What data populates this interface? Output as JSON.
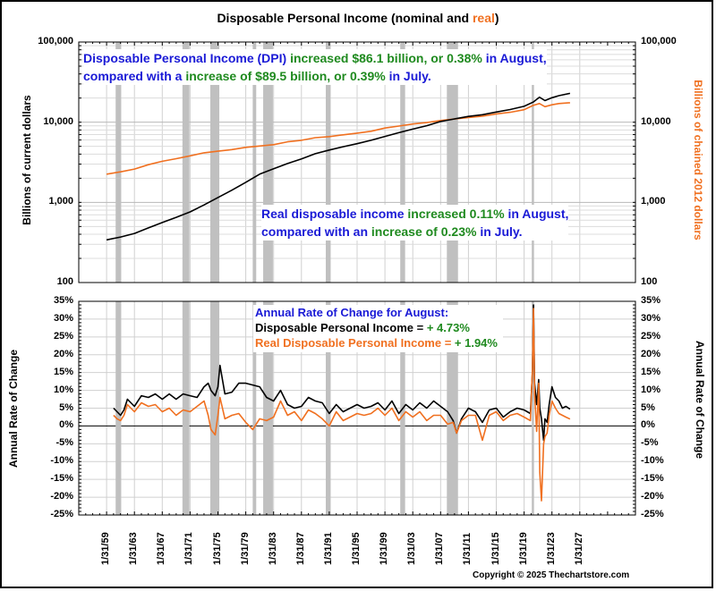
{
  "chart_data": [
    {
      "type": "line",
      "title": "Disposable Personal Income  (nominal and real)",
      "title_parts": [
        {
          "text": "Disposable Personal Income  (nominal and ",
          "color": "#000000"
        },
        {
          "text": "real",
          "color": "#f07020"
        },
        {
          "text": ")",
          "color": "#000000"
        }
      ],
      "ylabel_left": "Billions of current dollars",
      "ylabel_right": "Billions of chained 2012 dollars",
      "yscale": "log",
      "ylim": [
        100,
        100000
      ],
      "y_ticks": [
        "100,000",
        "10,000",
        "1,000",
        "100"
      ],
      "y_tick_values": [
        100000,
        10000,
        1000,
        100
      ],
      "grid": true,
      "x_range_years": [
        1955,
        2035
      ],
      "series": [
        {
          "name": "Disposable Personal Income (nominal)",
          "color": "#000000",
          "x": [
            1959,
            1961,
            1963,
            1965,
            1967,
            1969,
            1971,
            1973,
            1975,
            1977,
            1979,
            1981,
            1983,
            1985,
            1987,
            1989,
            1991,
            1993,
            1995,
            1997,
            1999,
            2001,
            2003,
            2005,
            2007,
            2009,
            2011,
            2013,
            2015,
            2017,
            2019,
            2020.3,
            2021.2,
            2022,
            2023,
            2024,
            2025.6
          ],
          "values": [
            340,
            370,
            410,
            480,
            560,
            650,
            760,
            930,
            1150,
            1420,
            1780,
            2250,
            2620,
            3050,
            3480,
            4050,
            4500,
            4950,
            5400,
            5950,
            6650,
            7400,
            8200,
            9050,
            10200,
            11000,
            11800,
            12400,
            13400,
            14400,
            15800,
            17800,
            20500,
            18600,
            20200,
            21400,
            22900
          ]
        },
        {
          "name": "Real Disposable Personal Income (chained 2012 $)",
          "color": "#f07020",
          "x": [
            1959,
            1961,
            1963,
            1965,
            1967,
            1969,
            1971,
            1973,
            1975,
            1977,
            1979,
            1981,
            1983,
            1985,
            1987,
            1989,
            1991,
            1993,
            1995,
            1997,
            1999,
            2001,
            2003,
            2005,
            2007,
            2009,
            2011,
            2013,
            2015,
            2017,
            2019,
            2020.3,
            2021.2,
            2022,
            2023,
            2024,
            2025.6
          ],
          "values": [
            2250,
            2400,
            2600,
            2950,
            3250,
            3500,
            3800,
            4150,
            4350,
            4550,
            4850,
            5050,
            5250,
            5700,
            5950,
            6400,
            6600,
            6950,
            7300,
            7700,
            8450,
            8950,
            9500,
            9900,
            10500,
            10950,
            11450,
            11900,
            12700,
            13300,
            14300,
            16200,
            17100,
            15600,
            16500,
            17100,
            17500
          ]
        }
      ],
      "annotations": [
        {
          "id": "dpi_note",
          "lines": [
            [
              {
                "text": "Disposable Personal Income (DPI) ",
                "color": "#1a1ad6"
              },
              {
                "text": "increased $86.1 billion, or 0.38%",
                "color": "#1f8a1f"
              },
              {
                "text": " in August,",
                "color": "#1a1ad6"
              }
            ],
            [
              {
                "text": "compared with a ",
                "color": "#1a1ad6"
              },
              {
                "text": "increase of $89.5 billion, or 0.39%",
                "color": "#1f8a1f"
              },
              {
                "text": " in July.",
                "color": "#1a1ad6"
              }
            ]
          ]
        },
        {
          "id": "real_note",
          "lines": [
            [
              {
                "text": "Real disposable income ",
                "color": "#1a1ad6"
              },
              {
                "text": "increased 0.11%",
                "color": "#1f8a1f"
              },
              {
                "text": " in August,",
                "color": "#1a1ad6"
              }
            ],
            [
              {
                "text": "compared with an ",
                "color": "#1a1ad6"
              },
              {
                "text": "increase of 0.23%",
                "color": "#1f8a1f"
              },
              {
                "text": " in July.",
                "color": "#1a1ad6"
              }
            ]
          ]
        }
      ]
    },
    {
      "type": "line",
      "ylabel_left": "Annual Rate of Change",
      "ylabel_right": "Annual Rate of Change",
      "ylim": [
        -25,
        35
      ],
      "y_ticks": [
        "35%",
        "30%",
        "25%",
        "20%",
        "15%",
        "10%",
        "5%",
        "0%",
        "-5%",
        "-10%",
        "-15%",
        "-20%",
        "-25%"
      ],
      "y_tick_values": [
        35,
        30,
        25,
        20,
        15,
        10,
        5,
        0,
        -5,
        -10,
        -15,
        -20,
        -25
      ],
      "grid": true,
      "x_ticks": [
        "1/31/59",
        "1/31/63",
        "1/31/67",
        "1/31/71",
        "1/31/75",
        "1/31/79",
        "1/31/83",
        "1/31/87",
        "1/31/91",
        "1/31/95",
        "1/31/99",
        "1/31/03",
        "1/31/07",
        "1/31/11",
        "1/31/15",
        "1/31/19",
        "1/31/23",
        "1/31/27"
      ],
      "x_tick_years": [
        1959,
        1963,
        1967,
        1971,
        1975,
        1979,
        1983,
        1987,
        1991,
        1995,
        1999,
        2003,
        2007,
        2011,
        2015,
        2019,
        2023,
        2027
      ],
      "series": [
        {
          "name": "Disposable Personal Income",
          "color": "#000000",
          "x": [
            1960,
            1960.5,
            1961,
            1961.5,
            1962,
            1963,
            1964,
            1965,
            1966,
            1967,
            1968,
            1969,
            1970,
            1971,
            1972,
            1973,
            1973.6,
            1974,
            1974.6,
            1975,
            1975.3,
            1976,
            1977,
            1978,
            1979,
            1980,
            1981,
            1982,
            1983,
            1984,
            1985,
            1986,
            1987,
            1988,
            1989,
            1990,
            1991,
            1992,
            1993,
            1994,
            1995,
            1996,
            1997,
            1998,
            1999,
            2000,
            2001,
            2002,
            2003,
            2004,
            2005,
            2006,
            2007,
            2008,
            2008.8,
            2009.3,
            2010,
            2011,
            2012,
            2013,
            2014,
            2015,
            2016,
            2017,
            2018,
            2019,
            2019.9,
            2020.2,
            2020.35,
            2020.5,
            2020.8,
            2021.1,
            2021.25,
            2021.5,
            2021.8,
            2022,
            2022.3,
            2022.6,
            2023,
            2023.5,
            2024,
            2024.5,
            2025,
            2025.6
          ],
          "values": [
            5,
            4,
            3,
            4.5,
            7.5,
            5.5,
            8.5,
            8,
            9,
            7.5,
            9,
            7.5,
            9,
            8.5,
            8,
            11,
            12,
            10,
            8.5,
            11,
            17,
            9,
            9.5,
            12,
            12,
            11.5,
            11,
            8,
            7,
            10,
            6,
            5,
            5.5,
            8,
            7,
            6.5,
            3.5,
            6,
            4,
            5,
            6,
            5,
            5.5,
            6.5,
            4.5,
            7,
            3.5,
            6,
            4.5,
            6.5,
            5,
            7,
            5.5,
            4,
            1.5,
            -2,
            2,
            5,
            4,
            1,
            4.5,
            5,
            2.5,
            4,
            5,
            4.5,
            3.5,
            15,
            34,
            12,
            6,
            13,
            5,
            2,
            -4,
            2,
            1,
            6,
            11,
            8,
            7,
            5,
            5.5,
            4.73
          ]
        },
        {
          "name": "Real Disposable Personal Income",
          "color": "#f07020",
          "x": [
            1960,
            1960.5,
            1961,
            1961.5,
            1962,
            1963,
            1964,
            1965,
            1966,
            1967,
            1968,
            1969,
            1970,
            1971,
            1972,
            1973,
            1973.6,
            1974,
            1974.6,
            1975,
            1975.3,
            1976,
            1977,
            1978,
            1979,
            1980,
            1981,
            1982,
            1983,
            1984,
            1985,
            1986,
            1987,
            1988,
            1989,
            1990,
            1991,
            1992,
            1993,
            1994,
            1995,
            1996,
            1997,
            1998,
            1999,
            2000,
            2001,
            2002,
            2003,
            2004,
            2005,
            2006,
            2007,
            2008,
            2008.8,
            2009.3,
            2010,
            2011,
            2012,
            2013,
            2014,
            2015,
            2016,
            2017,
            2018,
            2019,
            2019.9,
            2020.2,
            2020.35,
            2020.5,
            2020.8,
            2021.1,
            2021.25,
            2021.5,
            2021.8,
            2022,
            2022.3,
            2022.6,
            2023,
            2023.5,
            2024,
            2024.5,
            2025,
            2025.6
          ],
          "values": [
            3,
            2,
            1.5,
            3,
            6,
            4,
            6.5,
            5.5,
            6,
            4,
            5,
            3,
            4.5,
            4,
            5.5,
            7,
            3,
            -1,
            -2.5,
            3,
            8,
            2,
            3,
            3.5,
            1,
            -1,
            2,
            1.5,
            2.5,
            7,
            3,
            4,
            1.5,
            4.5,
            3.5,
            2,
            0,
            4,
            1.5,
            2.5,
            3.5,
            3,
            3.5,
            5,
            3,
            5,
            1.5,
            4,
            2.5,
            4,
            1.5,
            3,
            3,
            0.5,
            1,
            -2,
            1.5,
            3,
            3,
            -4,
            3,
            4,
            1.5,
            3,
            3.5,
            2.5,
            1.5,
            16,
            33,
            9,
            -1.5,
            12,
            -13,
            -21,
            -5,
            -3,
            -2,
            3,
            7,
            5,
            3.5,
            3,
            2.5,
            1.94
          ]
        }
      ],
      "annotation": {
        "title": "Annual Rate of Change for August:",
        "title_color": "#1a1ad6",
        "lines": [
          [
            {
              "text": "Disposable Personal Income = ",
              "color": "#000000"
            },
            {
              "text": "+ 4.73%",
              "color": "#1f8a1f"
            }
          ],
          [
            {
              "text": "Real Disposable Personal Income = ",
              "color": "#f07020"
            },
            {
              "text": "+ 1.94%",
              "color": "#1f8a1f"
            }
          ]
        ]
      }
    }
  ],
  "recessions": [
    [
      1960.3,
      1961.1
    ],
    [
      1969.9,
      1970.9
    ],
    [
      1973.9,
      1975.2
    ],
    [
      1980.0,
      1980.5
    ],
    [
      1981.5,
      1982.9
    ],
    [
      1990.5,
      1991.2
    ],
    [
      2001.2,
      2001.9
    ],
    [
      2007.9,
      2009.5
    ],
    [
      2020.1,
      2020.35
    ]
  ],
  "colors": {
    "nominal": "#000000",
    "real": "#f07020",
    "highlight": "#1f8a1f",
    "note": "#1a1ad6",
    "recession": "#c0c0c0",
    "grid": "#d0d0d0"
  },
  "footer": {
    "copyright": "Copyright © 2025 Thechartstore.com"
  }
}
